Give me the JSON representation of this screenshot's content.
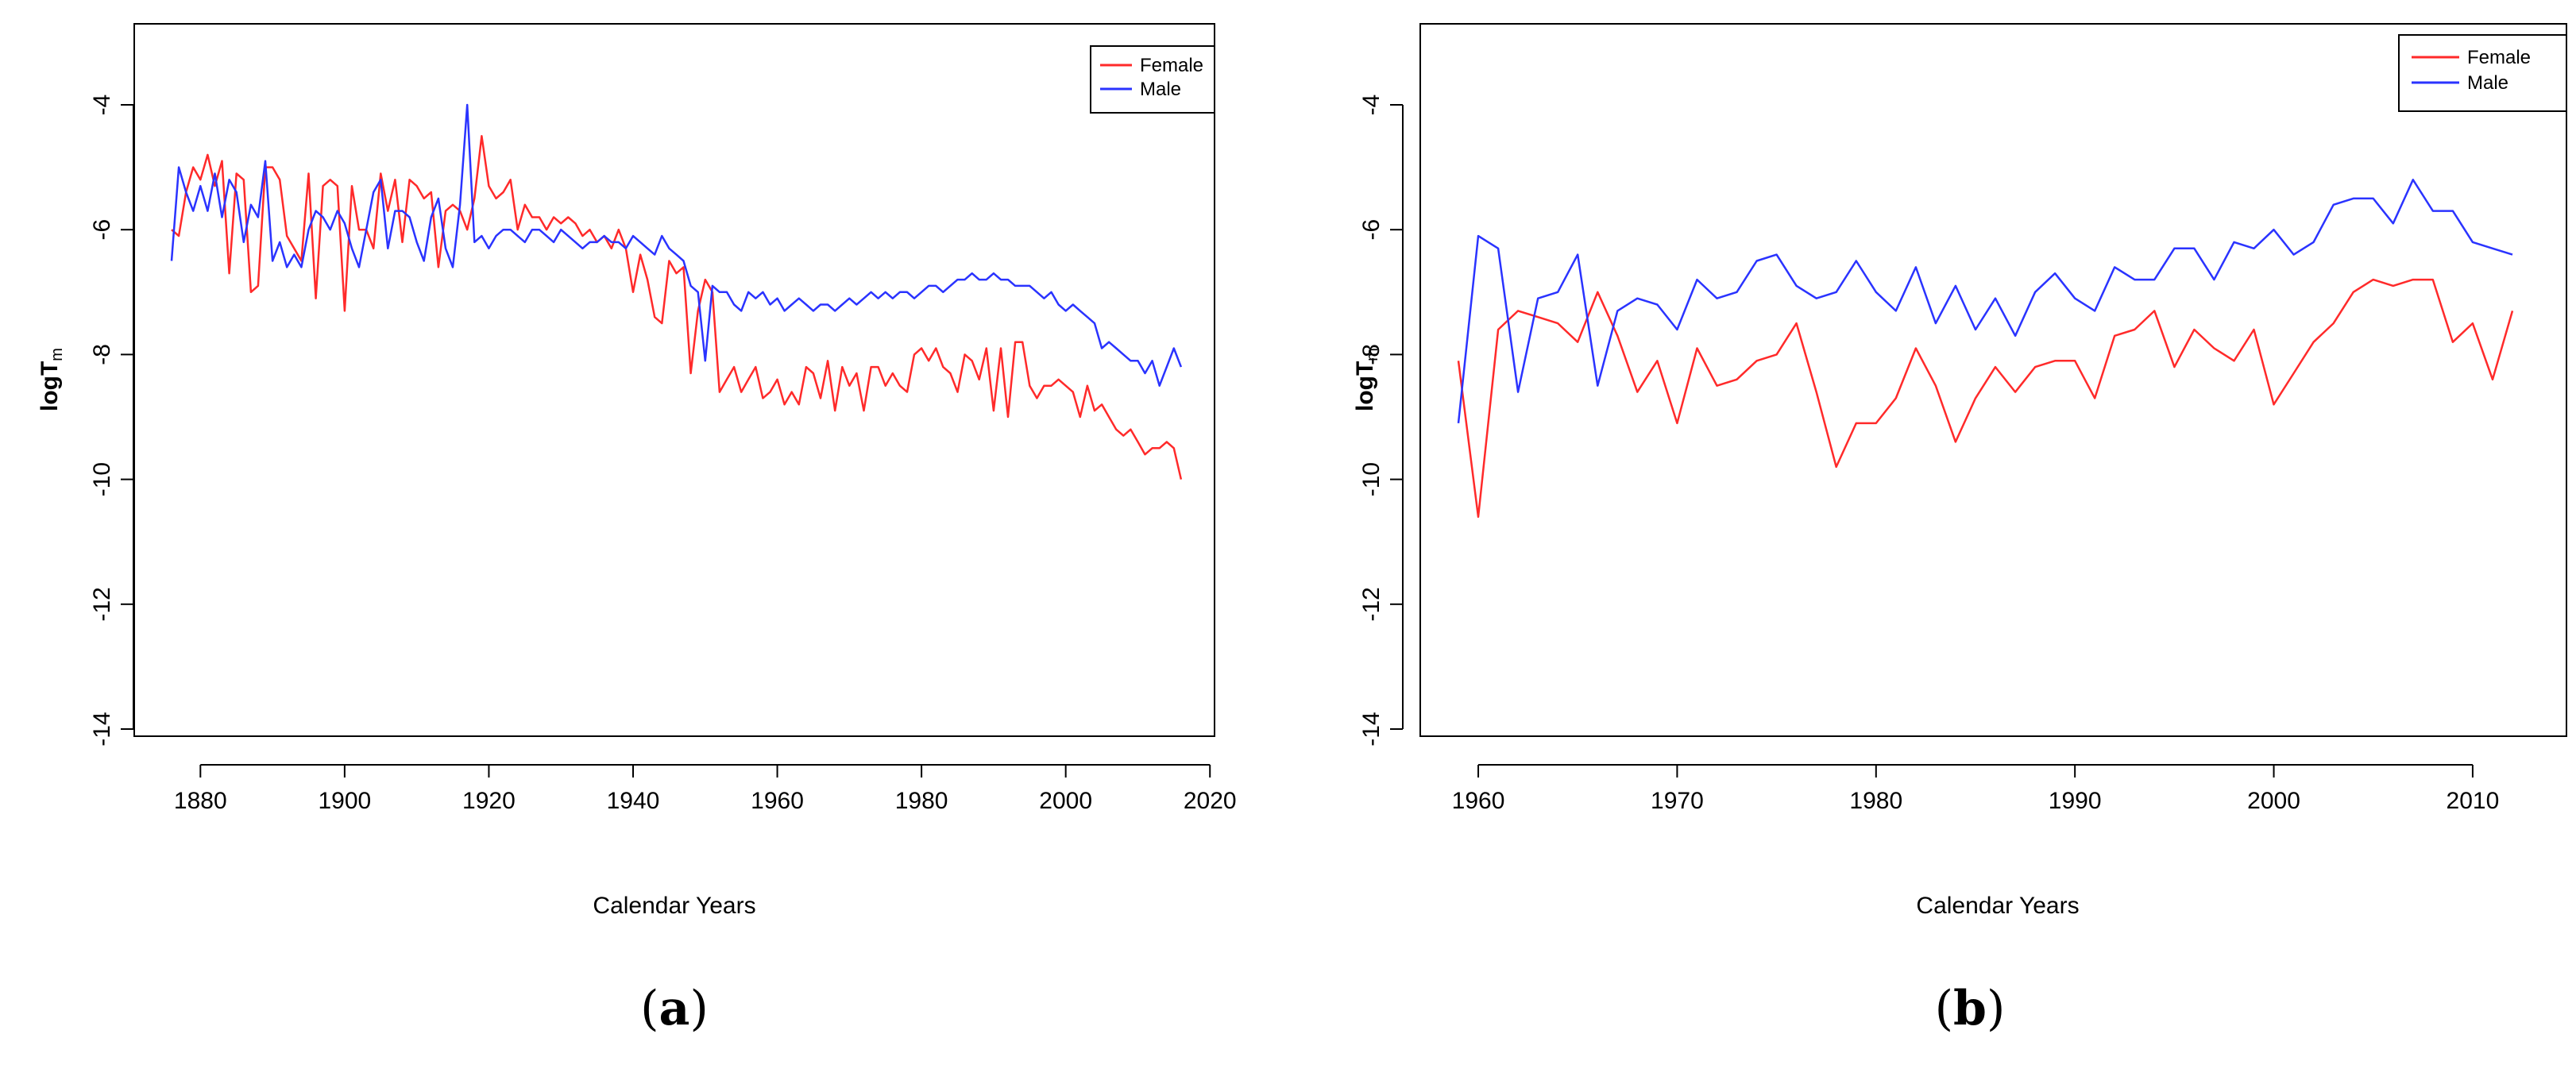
{
  "colors": {
    "female": "#ff2a2a",
    "male": "#2a33ff",
    "frame": "#000000"
  },
  "chart_data": [
    {
      "type": "line",
      "panel_label": "a",
      "xlabel": "Calendar Years",
      "ylabel": "logT",
      "ylabel_sub": "m",
      "xlim": [
        1876,
        2017
      ],
      "ylim": [
        -14,
        -3
      ],
      "x_ticks": [
        1880,
        1900,
        1920,
        1940,
        1960,
        1980,
        2000,
        2020
      ],
      "y_ticks": [
        -14,
        -12,
        -10,
        -8,
        -6,
        -4
      ],
      "grid": false,
      "legend_position": "top-right",
      "series": [
        {
          "name": "Female",
          "color": "#ff2a2a",
          "x_start": 1876,
          "values": [
            -6.0,
            -6.1,
            -5.4,
            -5.0,
            -5.2,
            -4.8,
            -5.3,
            -4.9,
            -6.7,
            -5.1,
            -5.2,
            -7.0,
            -6.9,
            -5.0,
            -5.0,
            -5.2,
            -6.1,
            -6.3,
            -6.5,
            -5.1,
            -7.1,
            -5.3,
            -5.2,
            -5.3,
            -7.3,
            -5.3,
            -6.0,
            -6.0,
            -6.3,
            -5.1,
            -5.7,
            -5.2,
            -6.2,
            -5.2,
            -5.3,
            -5.5,
            -5.4,
            -6.6,
            -5.7,
            -5.6,
            -5.7,
            -6.0,
            -5.5,
            -4.5,
            -5.3,
            -5.5,
            -5.4,
            -5.2,
            -6.0,
            -5.6,
            -5.8,
            -5.8,
            -6.0,
            -5.8,
            -5.9,
            -5.8,
            -5.9,
            -6.1,
            -6.0,
            -6.2,
            -6.1,
            -6.3,
            -6.0,
            -6.3,
            -7.0,
            -6.4,
            -6.8,
            -7.4,
            -7.5,
            -6.5,
            -6.7,
            -6.6,
            -8.3,
            -7.3,
            -6.8,
            -7.0,
            -8.6,
            -8.4,
            -8.2,
            -8.6,
            -8.4,
            -8.2,
            -8.7,
            -8.6,
            -8.4,
            -8.8,
            -8.6,
            -8.8,
            -8.2,
            -8.3,
            -8.7,
            -8.1,
            -8.9,
            -8.2,
            -8.5,
            -8.3,
            -8.9,
            -8.2,
            -8.2,
            -8.5,
            -8.3,
            -8.5,
            -8.6,
            -8.0,
            -7.9,
            -8.1,
            -7.9,
            -8.2,
            -8.3,
            -8.6,
            -8.0,
            -8.1,
            -8.4,
            -7.9,
            -8.9,
            -7.9,
            -9.0,
            -7.8,
            -7.8,
            -8.5,
            -8.7,
            -8.5,
            -8.5,
            -8.4,
            -8.5,
            -8.6,
            -9.0,
            -8.5,
            -8.9,
            -8.8,
            -9.0,
            -9.2,
            -9.3,
            -9.2,
            -9.4,
            -9.6,
            -9.5,
            -9.5,
            -9.4,
            -9.5,
            -10.0
          ]
        },
        {
          "name": "Male",
          "color": "#2a33ff",
          "x_start": 1876,
          "values": [
            -6.5,
            -5.0,
            -5.4,
            -5.7,
            -5.3,
            -5.7,
            -5.1,
            -5.8,
            -5.2,
            -5.4,
            -6.2,
            -5.6,
            -5.8,
            -4.9,
            -6.5,
            -6.2,
            -6.6,
            -6.4,
            -6.6,
            -6.0,
            -5.7,
            -5.8,
            -6.0,
            -5.7,
            -5.9,
            -6.3,
            -6.6,
            -6.0,
            -5.4,
            -5.2,
            -6.3,
            -5.7,
            -5.7,
            -5.8,
            -6.2,
            -6.5,
            -5.8,
            -5.5,
            -6.3,
            -6.6,
            -5.6,
            -4.0,
            -6.2,
            -6.1,
            -6.3,
            -6.1,
            -6.0,
            -6.0,
            -6.1,
            -6.2,
            -6.0,
            -6.0,
            -6.1,
            -6.2,
            -6.0,
            -6.1,
            -6.2,
            -6.3,
            -6.2,
            -6.2,
            -6.1,
            -6.2,
            -6.2,
            -6.3,
            -6.1,
            -6.2,
            -6.3,
            -6.4,
            -6.1,
            -6.3,
            -6.4,
            -6.5,
            -6.9,
            -7.0,
            -8.1,
            -6.9,
            -7.0,
            -7.0,
            -7.2,
            -7.3,
            -7.0,
            -7.1,
            -7.0,
            -7.2,
            -7.1,
            -7.3,
            -7.2,
            -7.1,
            -7.2,
            -7.3,
            -7.2,
            -7.2,
            -7.3,
            -7.2,
            -7.1,
            -7.2,
            -7.1,
            -7.0,
            -7.1,
            -7.0,
            -7.1,
            -7.0,
            -7.0,
            -7.1,
            -7.0,
            -6.9,
            -6.9,
            -7.0,
            -6.9,
            -6.8,
            -6.8,
            -6.7,
            -6.8,
            -6.8,
            -6.7,
            -6.8,
            -6.8,
            -6.9,
            -6.9,
            -6.9,
            -7.0,
            -7.1,
            -7.0,
            -7.2,
            -7.3,
            -7.2,
            -7.3,
            -7.4,
            -7.5,
            -7.9,
            -7.8,
            -7.9,
            -8.0,
            -8.1,
            -8.1,
            -8.3,
            -8.1,
            -8.5,
            -8.2,
            -7.9,
            -8.2
          ]
        }
      ]
    },
    {
      "type": "line",
      "panel_label": "b",
      "xlabel": "Calendar Years",
      "ylabel": "logT",
      "ylabel_sub": "m",
      "xlim": [
        1959,
        2012
      ],
      "ylim": [
        -14,
        -3
      ],
      "x_ticks": [
        1960,
        1970,
        1980,
        1990,
        2000,
        2010
      ],
      "y_ticks": [
        -14,
        -12,
        -10,
        -8,
        -6,
        -4
      ],
      "grid": false,
      "legend_position": "top-right",
      "series": [
        {
          "name": "Female",
          "color": "#ff2a2a",
          "x_start": 1959,
          "values": [
            -8.1,
            -10.6,
            -7.6,
            -7.3,
            -7.4,
            -7.5,
            -7.8,
            -7.0,
            -7.7,
            -8.6,
            -8.1,
            -9.1,
            -7.9,
            -8.5,
            -8.4,
            -8.1,
            -8.0,
            -7.5,
            -8.6,
            -9.8,
            -9.1,
            -9.1,
            -8.7,
            -7.9,
            -8.5,
            -9.4,
            -8.7,
            -8.2,
            -8.6,
            -8.2,
            -8.1,
            -8.1,
            -8.7,
            -7.7,
            -7.6,
            -7.3,
            -8.2,
            -7.6,
            -7.9,
            -8.1,
            -7.6,
            -8.8,
            -8.3,
            -7.8,
            -7.5,
            -7.0,
            -6.8,
            -6.9,
            -6.8,
            -6.8,
            -7.8,
            -7.5,
            -8.4,
            -7.3
          ]
        },
        {
          "name": "Male",
          "color": "#2a33ff",
          "x_start": 1959,
          "values": [
            -9.1,
            -6.1,
            -6.3,
            -8.6,
            -7.1,
            -7.0,
            -6.4,
            -8.5,
            -7.3,
            -7.1,
            -7.2,
            -7.6,
            -6.8,
            -7.1,
            -7.0,
            -6.5,
            -6.4,
            -6.9,
            -7.1,
            -7.0,
            -6.5,
            -7.0,
            -7.3,
            -6.6,
            -7.5,
            -6.9,
            -7.6,
            -7.1,
            -7.7,
            -7.0,
            -6.7,
            -7.1,
            -7.3,
            -6.6,
            -6.8,
            -6.8,
            -6.3,
            -6.3,
            -6.8,
            -6.2,
            -6.3,
            -6.0,
            -6.4,
            -6.2,
            -5.6,
            -5.5,
            -5.5,
            -5.9,
            -5.2,
            -5.7,
            -5.7,
            -6.2,
            -6.3,
            -6.4
          ]
        }
      ]
    }
  ]
}
